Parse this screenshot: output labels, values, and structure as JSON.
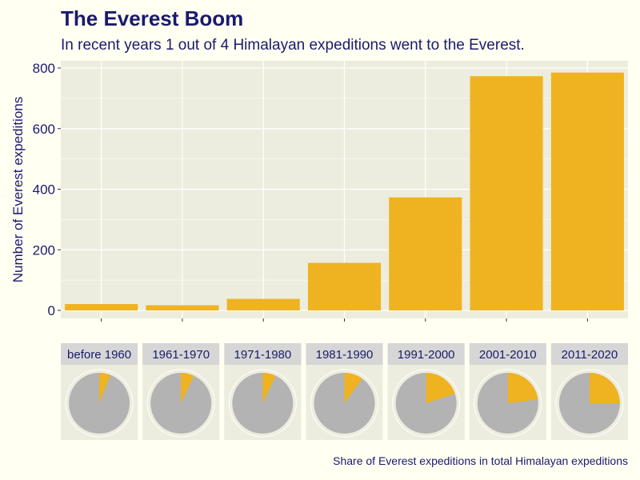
{
  "title": "The Everest Boom",
  "subtitle": "In recent years 1 out of 4 Himalayan expeditions went to the Everest.",
  "caption": "Share of Everest expeditions in total Himalayan expeditions",
  "colors": {
    "bar": "#efb321",
    "pie_rest": "#b3b3b3",
    "panel": "#ededdf",
    "strip": "#d6d6d6",
    "background": "#fffff2",
    "text": "#1a1a6e"
  },
  "chart_data": [
    {
      "type": "bar",
      "title": "The Everest Boom",
      "ylabel": "Number of Everest expeditions",
      "ylim": [
        0,
        820
      ],
      "yticks": [
        0,
        200,
        400,
        600,
        800
      ],
      "categories": [
        "before 1960",
        "1961-1970",
        "1971-1980",
        "1981-1990",
        "1991-2000",
        "2001-2010",
        "2011-2020"
      ],
      "values": [
        21,
        17,
        38,
        157,
        373,
        773,
        785
      ]
    },
    {
      "type": "pie",
      "caption": "Share of Everest expeditions in total Himalayan expeditions",
      "categories": [
        "before 1960",
        "1961-1970",
        "1971-1980",
        "1981-1990",
        "1991-2000",
        "2001-2010",
        "2011-2020"
      ],
      "everest_share": [
        0.06,
        0.07,
        0.07,
        0.1,
        0.2,
        0.23,
        0.25
      ]
    }
  ]
}
